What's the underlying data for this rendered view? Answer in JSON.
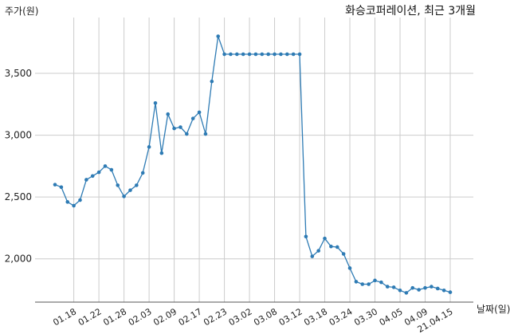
{
  "chart_data": {
    "type": "line",
    "title": "화승코퍼레이션, 최근 3개월",
    "ylabel": "주가(원)",
    "xlabel": "날짜(일)",
    "ylim": [
      1650,
      3900
    ],
    "yticks": [
      2000,
      2500,
      3000,
      3500
    ],
    "ytick_labels": [
      "2,000",
      "2,500",
      "3,000",
      "3,500"
    ],
    "grid": true,
    "line_color": "#2e7bb4",
    "x_tick_labels": [
      "01.18",
      "01.22",
      "01.28",
      "02.03",
      "02.09",
      "02.17",
      "02.23",
      "03.02",
      "03.08",
      "03.12",
      "03.18",
      "03.24",
      "03.30",
      "04.05",
      "04.09",
      "21.04.15"
    ],
    "x_tick_index": [
      3,
      7,
      11,
      15,
      19,
      23,
      27,
      31,
      35,
      39,
      43,
      47,
      51,
      55,
      59,
      63
    ],
    "values": [
      2600,
      2580,
      2460,
      2430,
      2475,
      2640,
      2670,
      2700,
      2750,
      2720,
      2595,
      2505,
      2555,
      2595,
      2695,
      2905,
      3260,
      2855,
      3170,
      3055,
      3065,
      3010,
      3135,
      3185,
      3010,
      3435,
      3800,
      3655,
      3655,
      3655,
      3655,
      3655,
      3655,
      3655,
      3655,
      3655,
      3655,
      3655,
      3655,
      3655,
      2180,
      2020,
      2065,
      2165,
      2100,
      2095,
      2040,
      1925,
      1815,
      1795,
      1795,
      1825,
      1810,
      1775,
      1770,
      1745,
      1725,
      1765,
      1750,
      1765,
      1775,
      1760,
      1745,
      1730
    ]
  }
}
